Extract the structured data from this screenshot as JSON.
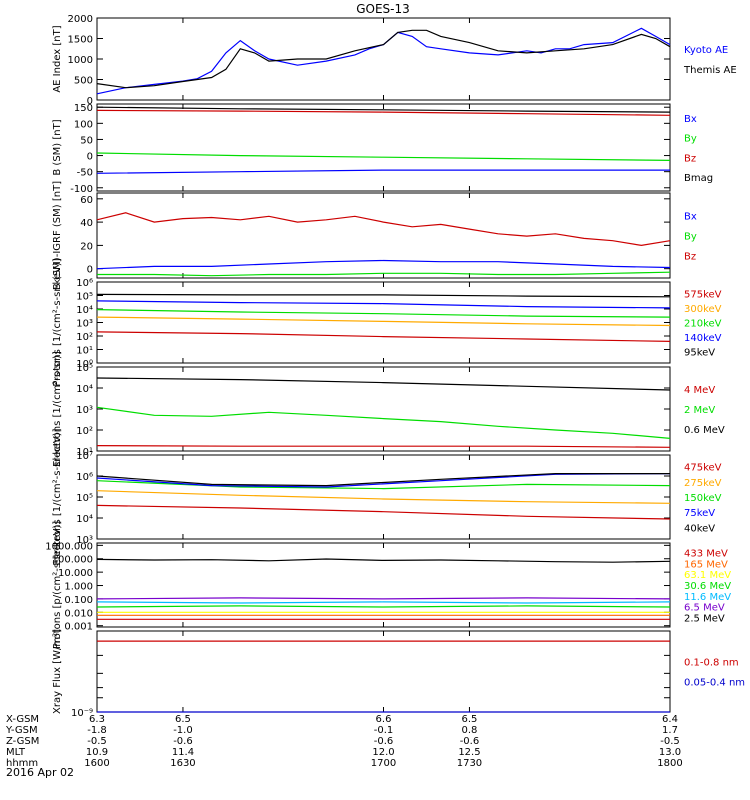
{
  "title": "GOES-13",
  "date_label": "2016 Apr 02",
  "x_range": [
    1600,
    1800
  ],
  "ephemeris": {
    "rows": [
      {
        "label": "X-GSM",
        "values": [
          "6.3",
          "6.5",
          "6.6",
          "6.5",
          "6.4"
        ]
      },
      {
        "label": "Y-GSM",
        "values": [
          "-1.8",
          "-1.0",
          "-0.1",
          "0.8",
          "1.7"
        ]
      },
      {
        "label": "Z-GSM",
        "values": [
          "-0.5",
          "-0.6",
          "-0.6",
          "-0.6",
          "-0.5"
        ]
      },
      {
        "label": "MLT",
        "values": [
          "10.9",
          "11.4",
          "12.0",
          "12.5",
          "13.0"
        ]
      },
      {
        "label": "hhmm",
        "values": [
          "1600",
          "1630",
          "1700",
          "1730",
          "1800"
        ]
      }
    ]
  },
  "chart_data": [
    {
      "type": "line",
      "ylabel": "AE Index [nT]",
      "yscale": "linear",
      "ylim": [
        0,
        2000
      ],
      "yticks": [
        0,
        500,
        1000,
        1500,
        2000
      ],
      "ytick_labels": [
        "0",
        "500",
        "1000",
        "1500",
        "2000"
      ],
      "series": [
        {
          "name": "Kyoto AE",
          "color": "#0000ff",
          "x": [
            1600,
            1610,
            1620,
            1630,
            1635,
            1640,
            1645,
            1650,
            1655,
            1660,
            1670,
            1680,
            1690,
            1695,
            1700,
            1705,
            1710,
            1715,
            1720,
            1730,
            1740,
            1750,
            1755,
            1760,
            1765,
            1770,
            1780,
            1790,
            1795,
            1800
          ],
          "y": [
            150,
            300,
            380,
            460,
            520,
            700,
            1150,
            1450,
            1200,
            1000,
            850,
            950,
            1100,
            1250,
            1350,
            1650,
            1550,
            1300,
            1250,
            1150,
            1100,
            1200,
            1150,
            1250,
            1250,
            1350,
            1400,
            1750,
            1550,
            1350
          ]
        },
        {
          "name": "Themis AE",
          "color": "#000000",
          "x": [
            1600,
            1610,
            1620,
            1630,
            1640,
            1645,
            1650,
            1655,
            1660,
            1670,
            1680,
            1690,
            1700,
            1705,
            1710,
            1715,
            1720,
            1730,
            1740,
            1750,
            1760,
            1770,
            1780,
            1790,
            1795,
            1800
          ],
          "y": [
            400,
            300,
            350,
            450,
            550,
            750,
            1250,
            1150,
            950,
            1000,
            1000,
            1200,
            1350,
            1650,
            1700,
            1700,
            1550,
            1400,
            1200,
            1150,
            1200,
            1250,
            1350,
            1600,
            1500,
            1300
          ]
        }
      ]
    },
    {
      "type": "line",
      "ylabel": "B (SM) [nT]",
      "yscale": "linear",
      "ylim": [
        -110,
        160
      ],
      "yticks": [
        -100,
        -50,
        0,
        50,
        100,
        150
      ],
      "ytick_labels": [
        "-100",
        "-50",
        "0",
        "50",
        "100",
        "150"
      ],
      "series": [
        {
          "name": "Bx",
          "color": "#0000ff",
          "x": [
            1600,
            1650,
            1700,
            1750,
            1800
          ],
          "y": [
            -55,
            -50,
            -45,
            -45,
            -45
          ]
        },
        {
          "name": "By",
          "color": "#00dd00",
          "x": [
            1600,
            1650,
            1700,
            1750,
            1800
          ],
          "y": [
            8,
            0,
            -5,
            -10,
            -15
          ]
        },
        {
          "name": "Bz",
          "color": "#cc0000",
          "x": [
            1600,
            1650,
            1700,
            1750,
            1800
          ],
          "y": [
            140,
            138,
            135,
            130,
            125
          ]
        },
        {
          "name": "Bmag",
          "color": "#000000",
          "x": [
            1600,
            1650,
            1700,
            1750,
            1800
          ],
          "y": [
            150,
            145,
            142,
            138,
            135
          ]
        }
      ]
    },
    {
      "type": "line",
      "ylabel": "B (SM)-IGRF (SM) [nT]",
      "yscale": "linear",
      "ylim": [
        -8,
        65
      ],
      "yticks": [
        0,
        20,
        40,
        60
      ],
      "ytick_labels": [
        "0",
        "20",
        "40",
        "60"
      ],
      "series": [
        {
          "name": "Bx",
          "color": "#0000ff",
          "x": [
            1600,
            1620,
            1640,
            1660,
            1680,
            1700,
            1720,
            1740,
            1760,
            1780,
            1800
          ],
          "y": [
            0,
            2,
            2,
            4,
            6,
            7,
            6,
            6,
            4,
            2,
            1
          ]
        },
        {
          "name": "By",
          "color": "#00dd00",
          "x": [
            1600,
            1620,
            1640,
            1660,
            1680,
            1700,
            1720,
            1740,
            1760,
            1780,
            1800
          ],
          "y": [
            -5,
            -5,
            -6,
            -5,
            -5,
            -4,
            -4,
            -5,
            -5,
            -4,
            -3
          ]
        },
        {
          "name": "Bz",
          "color": "#cc0000",
          "x": [
            1600,
            1610,
            1620,
            1630,
            1640,
            1650,
            1660,
            1670,
            1680,
            1690,
            1700,
            1710,
            1720,
            1730,
            1740,
            1750,
            1760,
            1770,
            1780,
            1790,
            1800
          ],
          "y": [
            42,
            48,
            40,
            43,
            44,
            42,
            45,
            40,
            42,
            45,
            40,
            36,
            38,
            34,
            30,
            28,
            30,
            26,
            24,
            20,
            24
          ]
        }
      ]
    },
    {
      "type": "line",
      "ylabel": "Protons [1/(cm²-s-sr-keV)]",
      "yscale": "log",
      "ylim": [
        1,
        1000000
      ],
      "yticks": [
        1,
        10,
        100,
        1000,
        10000,
        100000,
        1000000
      ],
      "ytick_labels": [
        "10⁰",
        "10¹",
        "10²",
        "10³",
        "10⁴",
        "10⁵",
        "10⁶"
      ],
      "series": [
        {
          "name": "575keV",
          "color": "#cc0000",
          "x": [
            1600,
            1650,
            1700,
            1750,
            1800
          ],
          "y": [
            200,
            150,
            90,
            60,
            40
          ]
        },
        {
          "name": "300keV",
          "color": "#ffaa00",
          "x": [
            1600,
            1650,
            1700,
            1750,
            1800
          ],
          "y": [
            2500,
            1800,
            1200,
            800,
            600
          ]
        },
        {
          "name": "210keV",
          "color": "#00dd00",
          "x": [
            1600,
            1650,
            1700,
            1750,
            1800
          ],
          "y": [
            9000,
            6000,
            4500,
            3000,
            2500
          ]
        },
        {
          "name": "140keV",
          "color": "#0000ff",
          "x": [
            1600,
            1650,
            1700,
            1750,
            1800
          ],
          "y": [
            40000,
            30000,
            25000,
            15000,
            12000
          ]
        },
        {
          "name": "95keV",
          "color": "#000000",
          "x": [
            1600,
            1650,
            1700,
            1750,
            1800
          ],
          "y": [
            120000,
            110000,
            110000,
            90000,
            80000
          ]
        }
      ]
    },
    {
      "type": "line",
      "ylabel": "Electrons [1/(cm²-s-sr)]",
      "yscale": "log",
      "ylim": [
        10,
        100000
      ],
      "yticks": [
        10,
        100,
        1000,
        10000,
        100000
      ],
      "ytick_labels": [
        "10¹",
        "10²",
        "10³",
        "10⁴",
        "10⁵"
      ],
      "series": [
        {
          "name": "4 MeV",
          "color": "#cc0000",
          "x": [
            1600,
            1650,
            1700,
            1750,
            1800
          ],
          "y": [
            18,
            17,
            17,
            17,
            15
          ]
        },
        {
          "name": "2 MeV",
          "color": "#00dd00",
          "x": [
            1600,
            1620,
            1640,
            1660,
            1680,
            1700,
            1720,
            1740,
            1760,
            1780,
            1800
          ],
          "y": [
            1200,
            500,
            450,
            700,
            500,
            350,
            250,
            150,
            100,
            70,
            40
          ]
        },
        {
          "name": "0.6 MeV",
          "color": "#000000",
          "x": [
            1600,
            1650,
            1700,
            1750,
            1800
          ],
          "y": [
            30000,
            25000,
            18000,
            12000,
            8000
          ]
        }
      ]
    },
    {
      "type": "line",
      "ylabel": "Electrons [1/(cm²-s-sr-keV)]",
      "yscale": "log",
      "ylim": [
        1000,
        10000000
      ],
      "yticks": [
        1000,
        10000,
        100000,
        1000000,
        10000000
      ],
      "ytick_labels": [
        "10³",
        "10⁴",
        "10⁵",
        "10⁶",
        "10⁷"
      ],
      "series": [
        {
          "name": "475keV",
          "color": "#cc0000",
          "x": [
            1600,
            1650,
            1700,
            1750,
            1800
          ],
          "y": [
            40000,
            30000,
            20000,
            12000,
            9000
          ]
        },
        {
          "name": "275keV",
          "color": "#ffaa00",
          "x": [
            1600,
            1650,
            1700,
            1750,
            1800
          ],
          "y": [
            200000,
            120000,
            80000,
            60000,
            50000
          ]
        },
        {
          "name": "150keV",
          "color": "#00dd00",
          "x": [
            1600,
            1650,
            1700,
            1750,
            1800
          ],
          "y": [
            600000,
            300000,
            250000,
            400000,
            350000
          ]
        },
        {
          "name": "75keV",
          "color": "#0000ff",
          "x": [
            1600,
            1640,
            1680,
            1720,
            1760,
            1800
          ],
          "y": [
            800000,
            350000,
            300000,
            600000,
            1200000,
            1300000
          ]
        },
        {
          "name": "40keV",
          "color": "#000000",
          "x": [
            1600,
            1640,
            1680,
            1720,
            1760,
            1800
          ],
          "y": [
            1000000,
            400000,
            350000,
            700000,
            1300000,
            1300000
          ]
        }
      ]
    },
    {
      "type": "line",
      "ylabel": "Protons [p/(cm²-s-sr-keV)]",
      "yscale": "log",
      "ylim": [
        0.0008,
        1500
      ],
      "yticks": [
        0.001,
        0.01,
        0.1,
        1,
        10,
        100,
        1000
      ],
      "ytick_labels": [
        "0.001",
        "0.010",
        "0.100",
        "1.000",
        "10.000",
        "100.000",
        "1000.000"
      ],
      "series": [
        {
          "name": "433 MeV",
          "color": "#cc0000",
          "x": [
            1600,
            1650,
            1700,
            1750,
            1800
          ],
          "y": [
            0.003,
            0.003,
            0.003,
            0.003,
            0.003
          ]
        },
        {
          "name": "165 MeV",
          "color": "#ff6600",
          "x": [
            1600,
            1650,
            1700,
            1750,
            1800
          ],
          "y": [
            0.006,
            0.006,
            0.006,
            0.006,
            0.006
          ]
        },
        {
          "name": "63.1 MeV",
          "color": "#ffff00",
          "x": [
            1600,
            1650,
            1700,
            1750,
            1800
          ],
          "y": [
            0.01,
            0.01,
            0.01,
            0.01,
            0.01
          ]
        },
        {
          "name": "30.6 MeV",
          "color": "#00dd00",
          "x": [
            1600,
            1650,
            1700,
            1750,
            1800
          ],
          "y": [
            0.025,
            0.03,
            0.025,
            0.03,
            0.025
          ]
        },
        {
          "name": "11.6 MeV",
          "color": "#00bbff",
          "x": [
            1600,
            1650,
            1700,
            1750,
            1800
          ],
          "y": [
            0.06,
            0.05,
            0.06,
            0.05,
            0.06
          ]
        },
        {
          "name": "6.5 MeV",
          "color": "#7700cc",
          "x": [
            1600,
            1650,
            1700,
            1750,
            1800
          ],
          "y": [
            0.1,
            0.12,
            0.1,
            0.12,
            0.1
          ]
        },
        {
          "name": "2.5 MeV",
          "color": "#000000",
          "x": [
            1600,
            1620,
            1640,
            1660,
            1680,
            1700,
            1720,
            1740,
            1760,
            1780,
            1800
          ],
          "y": [
            90,
            80,
            85,
            70,
            95,
            75,
            80,
            70,
            60,
            55,
            65
          ]
        }
      ]
    },
    {
      "type": "line",
      "ylabel": "Xray Flux [W/m²]",
      "yscale": "log",
      "ylim": [
        1e-09,
        1e-08
      ],
      "yticks": [
        1e-09,
        1.5e-09,
        2e-09,
        3e-09,
        5e-09
      ],
      "ytick_labels": [
        "10⁻⁹",
        "",
        "",
        "",
        ""
      ],
      "series": [
        {
          "name": "0.1-0.8 nm",
          "color": "#cc0000",
          "x": [
            1600,
            1650,
            1700,
            1750,
            1800
          ],
          "y": [
            7.5e-09,
            7.5e-09,
            7.5e-09,
            7.5e-09,
            7.5e-09
          ]
        },
        {
          "name": "0.05-0.4 nm",
          "color": "#0000cc",
          "x": [
            1600,
            1650,
            1700,
            1750,
            1800
          ],
          "y": [
            1e-09,
            1e-09,
            1e-09,
            1e-09,
            1e-09
          ]
        }
      ]
    }
  ]
}
